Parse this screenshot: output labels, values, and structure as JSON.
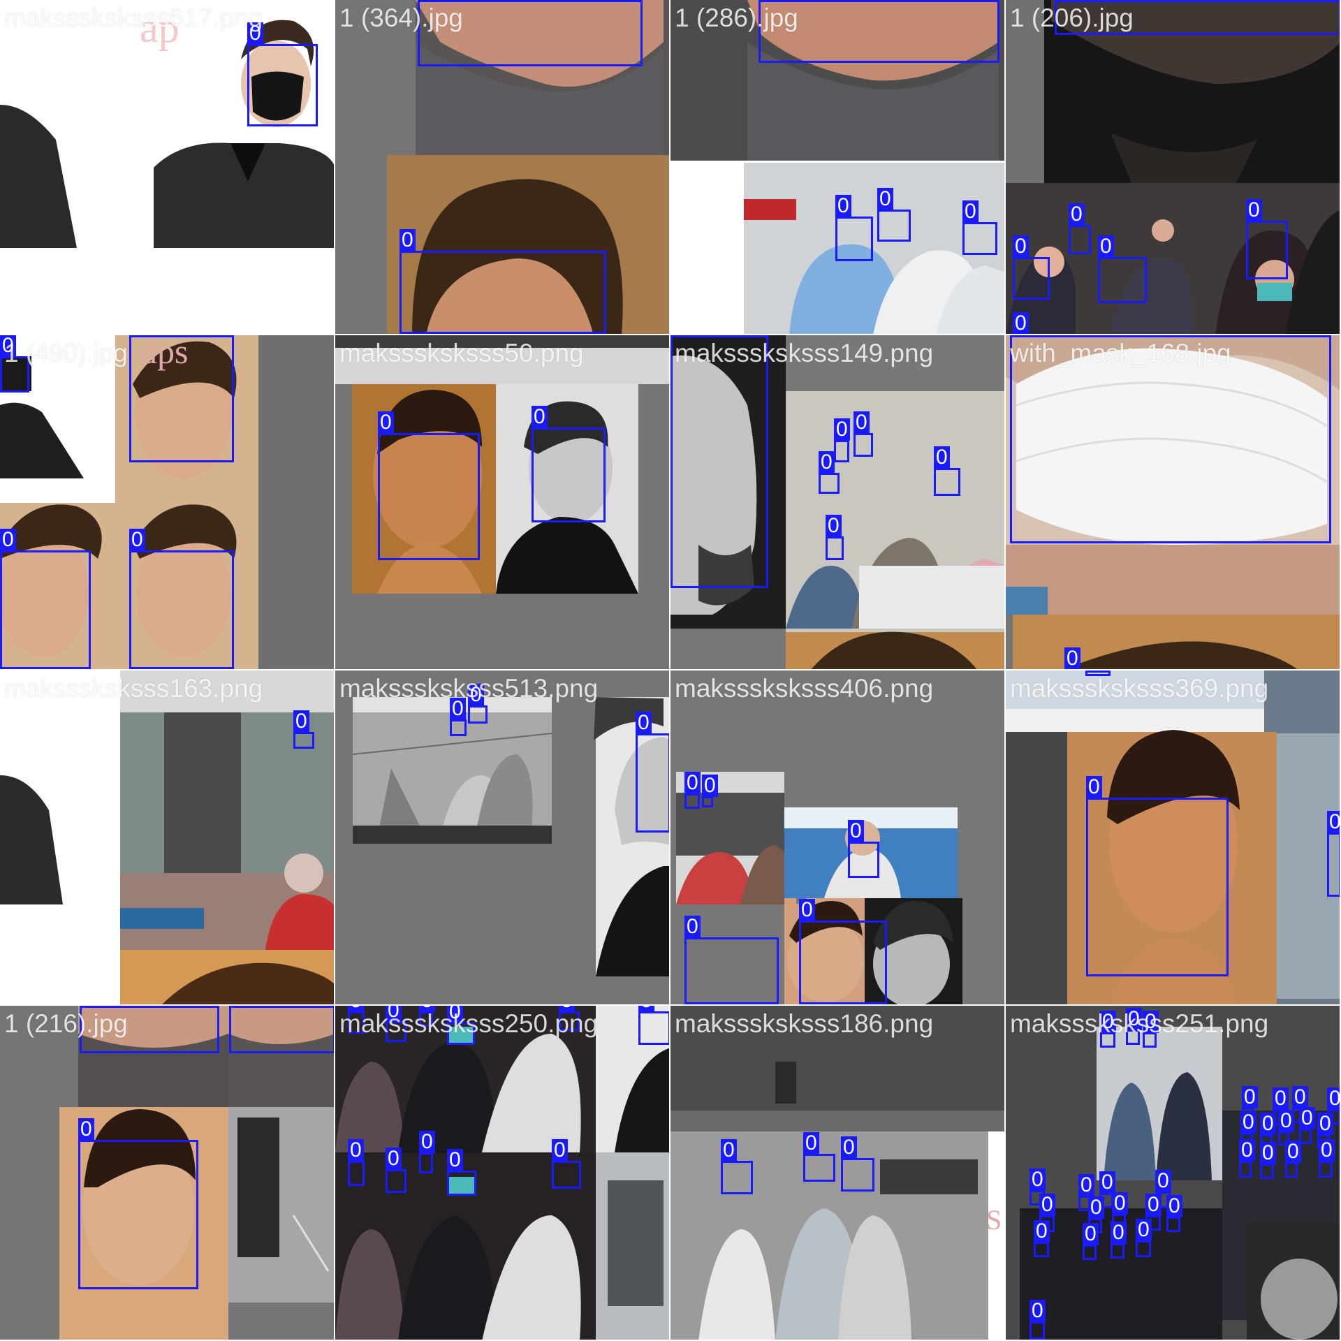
{
  "image": {
    "tile_count": 16,
    "box_color": "#1a1aff",
    "detection_label": "0"
  },
  "tiles": [
    {
      "title": "maksssksksss617.png",
      "detections": 1
    },
    {
      "title": "1 (364).jpg",
      "detections": 2
    },
    {
      "title": "1 (286).jpg",
      "detections": 4
    },
    {
      "title": "1 (206).jpg",
      "detections": 6
    },
    {
      "title": "1 (490).jpg",
      "detections": 4
    },
    {
      "title": "maksssksksss50.png",
      "detections": 2
    },
    {
      "title": "maksssksksss149.png",
      "detections": 7
    },
    {
      "title": "with_mask_168.jpg",
      "detections": 2
    },
    {
      "title": "maksssksksss163.png",
      "detections": 1
    },
    {
      "title": "maksssksksss513.png",
      "detections": 3
    },
    {
      "title": "maksssksksss406.png",
      "detections": 5
    },
    {
      "title": "maksssksksss369.png",
      "detections": 2
    },
    {
      "title": "1 (216).jpg",
      "detections": 3
    },
    {
      "title": "maksssksksss250.png",
      "detections": 12
    },
    {
      "title": "maksssksksss186.png",
      "detections": 3
    },
    {
      "title": "maksssksksss251.png",
      "detections": 30
    }
  ]
}
